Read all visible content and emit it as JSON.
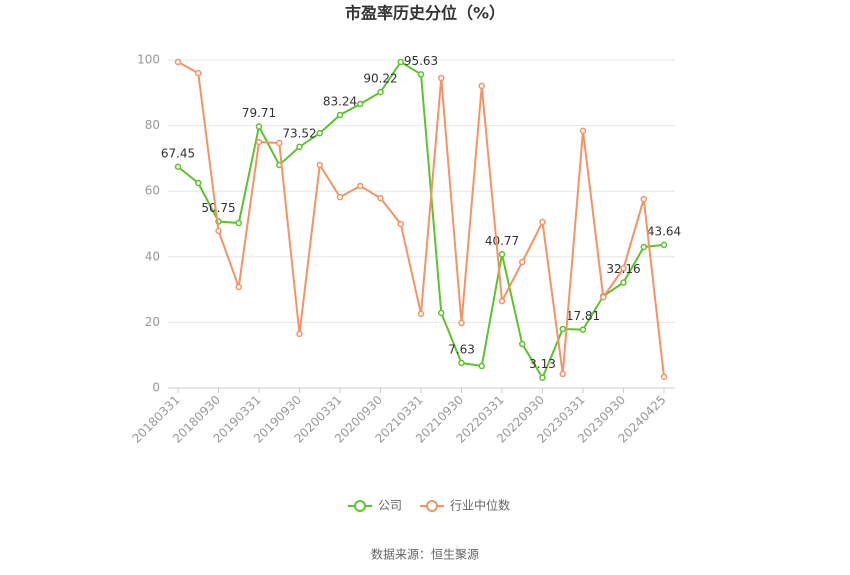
{
  "chart_data": {
    "type": "line",
    "title": "市盈率历史分位（%）",
    "source": "数据来源：恒生聚源",
    "categories": [
      "20180331",
      null,
      "20180930",
      null,
      "20190331",
      null,
      "20190930",
      null,
      "20200331",
      null,
      "20200930",
      null,
      "20210331",
      null,
      "20210930",
      null,
      "20220331",
      null,
      "20220930",
      null,
      "20230331",
      null,
      "20230930",
      null,
      "20240425"
    ],
    "series": [
      {
        "name": "公司",
        "color": "#5cc22e",
        "values": [
          67.45,
          62.5,
          50.75,
          50.3,
          79.71,
          68.0,
          73.52,
          77.7,
          83.24,
          86.6,
          90.22,
          99.4,
          95.63,
          22.9,
          7.63,
          6.7,
          40.77,
          13.4,
          3.13,
          18.0,
          17.81,
          28.0,
          32.16,
          43.0,
          43.64
        ],
        "value_labels": [
          "67.45",
          null,
          "50.75",
          null,
          "79.71",
          null,
          "73.52",
          null,
          "83.24",
          null,
          "90.22",
          null,
          "95.63",
          null,
          "7.63",
          null,
          "40.77",
          null,
          "3.13",
          null,
          "17.81",
          null,
          "32.16",
          null,
          "43.64"
        ]
      },
      {
        "name": "行业中位数",
        "color": "#f39467",
        "values": [
          99.4,
          96.0,
          47.9,
          30.8,
          75.0,
          74.7,
          16.5,
          68.0,
          58.2,
          61.6,
          57.9,
          50.0,
          22.6,
          94.5,
          19.8,
          92.1,
          26.5,
          38.4,
          50.6,
          4.3,
          78.4,
          27.7,
          36.5,
          57.6,
          3.4
        ]
      }
    ],
    "ylim": [
      0,
      100
    ],
    "yticks": [
      0,
      20,
      40,
      60,
      80,
      100
    ],
    "grid": true,
    "legend": "bottom"
  }
}
